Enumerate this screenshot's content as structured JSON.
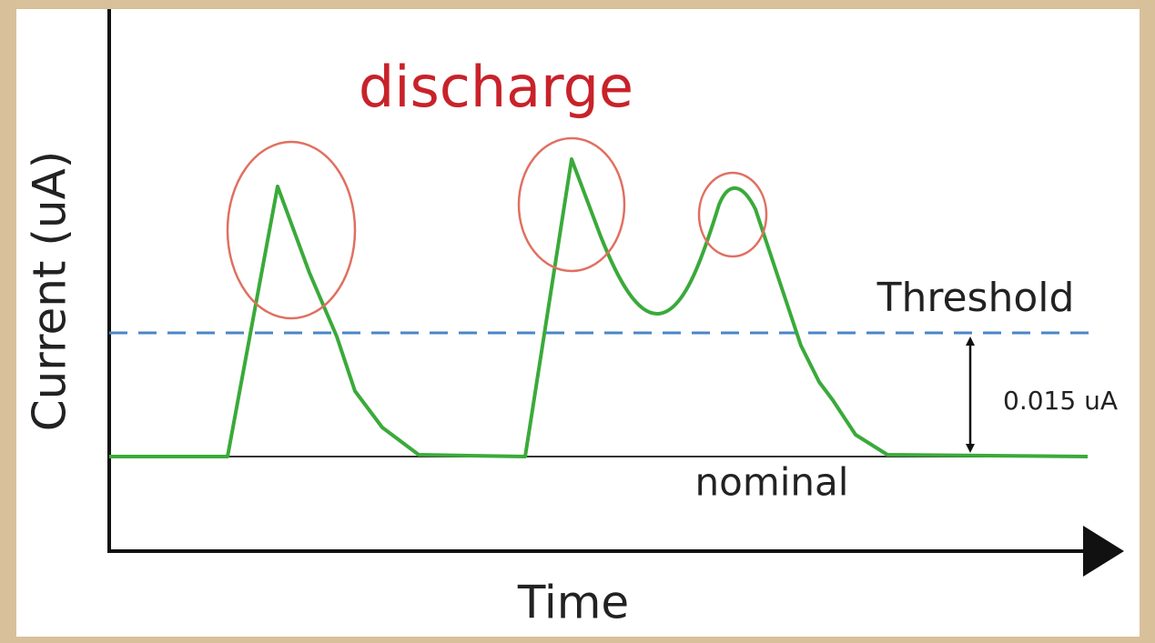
{
  "title": "discharge",
  "y_axis_label": "Current (uA)",
  "x_axis_label": "Time",
  "threshold_label": "Threshold",
  "nominal_label": "nominal",
  "gap_label": "0.015 uA"
}
